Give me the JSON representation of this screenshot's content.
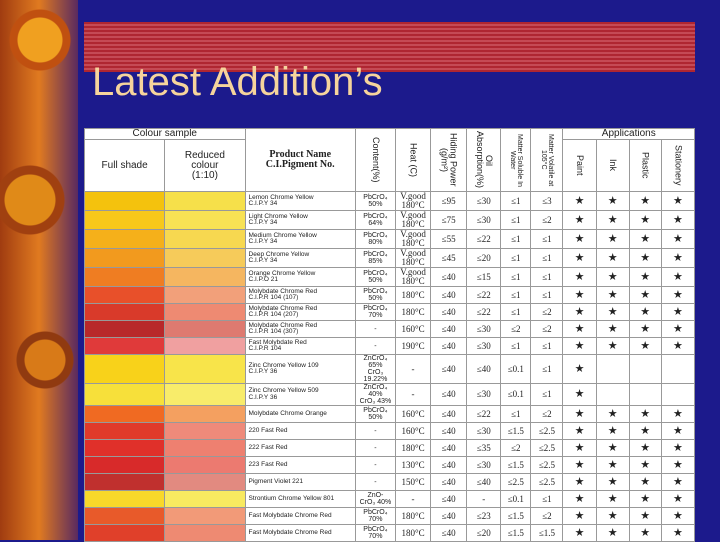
{
  "title": "Latest Addition’s",
  "table": {
    "header": {
      "colour_sample": "Colour sample",
      "full_shade": "Full shade",
      "reduced": [
        "Reduced",
        "colour",
        "(1:10)"
      ],
      "product": [
        "Product Name",
        "C.I.Pigment No."
      ],
      "columns": [
        "Content(%)",
        "Heat (C)",
        "Hiding Power (g/m²)",
        "Oil Absorption(%)",
        "Matter Soluble In Water",
        "Matter Volatile at 105°C"
      ],
      "applications": "Applications",
      "apps": [
        "Paint",
        "Ink",
        "Plastic",
        "Stationery"
      ]
    },
    "rows": [
      {
        "full": "#f4c20d",
        "reduced": "#f6e04a",
        "name": [
          "Lemon Chrome Yellow",
          "C.I.P.Y 34"
        ],
        "content": [
          "PbCrO₄ 50%"
        ],
        "heat": [
          "V.good",
          "180°C"
        ],
        "hiding": "≤95",
        "oil": "≤30",
        "soluble": "≤1",
        "volatile": "≤3",
        "apps": [
          "★",
          "★",
          "★",
          "★"
        ]
      },
      {
        "full": "#f7c81a",
        "reduced": "#f8e254",
        "name": [
          "Light Chrome Yellow",
          "C.I.P.Y 34"
        ],
        "content": [
          "PbCrO₄ 64%"
        ],
        "heat": [
          "V.good",
          "180°C"
        ],
        "hiding": "≤75",
        "oil": "≤30",
        "soluble": "≤1",
        "volatile": "≤2",
        "apps": [
          "★",
          "★",
          "★",
          "★"
        ]
      },
      {
        "full": "#f5b01a",
        "reduced": "#f7d850",
        "name": [
          "Medium Chrome Yellow",
          "C.I.P.Y 34"
        ],
        "content": [
          "PbCrO₄ 80%"
        ],
        "heat": [
          "V.good",
          "180°C"
        ],
        "hiding": "≤55",
        "oil": "≤22",
        "soluble": "≤1",
        "volatile": "≤1",
        "apps": [
          "★",
          "★",
          "★",
          "★"
        ]
      },
      {
        "full": "#f29a1e",
        "reduced": "#f6cb5a",
        "name": [
          "Deep Chrome Yellow",
          "C.I.P.Y 34"
        ],
        "content": [
          "PbCrO₄ 85%"
        ],
        "heat": [
          "V.good",
          "180°C"
        ],
        "hiding": "≤45",
        "oil": "≤20",
        "soluble": "≤1",
        "volatile": "≤1",
        "apps": [
          "★",
          "★",
          "★",
          "★"
        ]
      },
      {
        "full": "#ef7d22",
        "reduced": "#f5b660",
        "name": [
          "Orange Chrome Yellow",
          "C.I.P.O 21"
        ],
        "content": [
          "PbCrO₄ 50%"
        ],
        "heat": [
          "V.good",
          "180°C"
        ],
        "hiding": "≤40",
        "oil": "≤15",
        "soluble": "≤1",
        "volatile": "≤1",
        "apps": [
          "★",
          "★",
          "★",
          "★"
        ]
      },
      {
        "full": "#e8502a",
        "reduced": "#f2a07a",
        "name": [
          "Molybdate Chrome Red",
          "C.I.P.R 104 (107)"
        ],
        "content": [
          "PbCrO₄ 50%"
        ],
        "heat": [
          "180°C"
        ],
        "hiding": "≤40",
        "oil": "≤22",
        "soluble": "≤1",
        "volatile": "≤1",
        "apps": [
          "★",
          "★",
          "★",
          "★"
        ]
      },
      {
        "full": "#d93a2a",
        "reduced": "#ee8a72",
        "name": [
          "Molybdate Chrome Red",
          "C.I.P.R 104 (207)"
        ],
        "content": [
          "PbCrO₄ 70%"
        ],
        "heat": [
          "180°C"
        ],
        "hiding": "≤40",
        "oil": "≤22",
        "soluble": "≤1",
        "volatile": "≤2",
        "apps": [
          "★",
          "★",
          "★",
          "★"
        ]
      },
      {
        "full": "#b8282a",
        "reduced": "#de7a70",
        "name": [
          "Molybdate Chrome Red",
          "C.I.P.R 104 (307)"
        ],
        "content": [
          "-"
        ],
        "heat": [
          "160°C"
        ],
        "hiding": "≤40",
        "oil": "≤30",
        "soluble": "≤2",
        "volatile": "≤2",
        "apps": [
          "★",
          "★",
          "★",
          "★"
        ]
      },
      {
        "full": "#e03a3a",
        "reduced": "#f0a0a0",
        "name": [
          "Fast Molybdate Red",
          "C.I.P.R 104"
        ],
        "content": [
          "-"
        ],
        "heat": [
          "190°C"
        ],
        "hiding": "≤40",
        "oil": "≤30",
        "soluble": "≤1",
        "volatile": "≤1",
        "apps": [
          "★",
          "★",
          "★",
          "★"
        ]
      },
      {
        "full": "#f8d21a",
        "reduced": "#f8e44a",
        "name": [
          "Zinc Chrome Yellow 109",
          "C.I.P.Y 36"
        ],
        "content": [
          "ZnCrO₄ 65%",
          "CrO₃ 19.22%"
        ],
        "heat": [
          "-"
        ],
        "hiding": "≤40",
        "oil": "≤40",
        "soluble": "≤0.1",
        "volatile": "≤1",
        "apps": [
          "★"
        ]
      },
      {
        "full": "#f7e03a",
        "reduced": "#f8ec6a",
        "name": [
          "Zinc Chrome Yellow 509",
          "C.I.P.Y 36"
        ],
        "content": [
          "ZnCrO₄ 40%",
          "CrO₃ 43%"
        ],
        "heat": [
          "-"
        ],
        "hiding": "≤40",
        "oil": "≤30",
        "soluble": "≤0.1",
        "volatile": "≤1",
        "apps": [
          "★"
        ]
      },
      {
        "full": "#f06a22",
        "reduced": "#f4a060",
        "name": [
          "Molybdate Chrome Orange"
        ],
        "content": [
          "PbCrO₄ 50%"
        ],
        "heat": [
          "160°C"
        ],
        "hiding": "≤40",
        "oil": "≤22",
        "soluble": "≤1",
        "volatile": "≤2",
        "apps": [
          "★",
          "★",
          "★",
          "★"
        ]
      },
      {
        "full": "#e03a2a",
        "reduced": "#ef8a7a",
        "name": [
          "220 Fast Red"
        ],
        "content": [
          "-"
        ],
        "heat": [
          "160°C"
        ],
        "hiding": "≤40",
        "oil": "≤30",
        "soluble": "≤1.5",
        "volatile": "≤2.5",
        "apps": [
          "★",
          "★",
          "★",
          "★"
        ]
      },
      {
        "full": "#e0302a",
        "reduced": "#ee8070",
        "name": [
          "222 Fast Red"
        ],
        "content": [
          "-"
        ],
        "heat": [
          "180°C"
        ],
        "hiding": "≤40",
        "oil": "≤35",
        "soluble": "≤2",
        "volatile": "≤2.5",
        "apps": [
          "★",
          "★",
          "★",
          "★"
        ]
      },
      {
        "full": "#d82a2a",
        "reduced": "#ec7a70",
        "name": [
          "223 Fast Red"
        ],
        "content": [
          "-"
        ],
        "heat": [
          "130°C"
        ],
        "hiding": "≤40",
        "oil": "≤30",
        "soluble": "≤1.5",
        "volatile": "≤2.5",
        "apps": [
          "★",
          "★",
          "★",
          "★"
        ]
      },
      {
        "full": "#c0302e",
        "reduced": "#e28a80",
        "name": [
          "Pigment Violet 221"
        ],
        "content": [
          "-"
        ],
        "heat": [
          "150°C"
        ],
        "hiding": "≤40",
        "oil": "≤40",
        "soluble": "≤2.5",
        "volatile": "≤2.5",
        "apps": [
          "★",
          "★",
          "★",
          "★"
        ]
      },
      {
        "full": "#f8d82a",
        "reduced": "#f8ea60",
        "name": [
          "Strontium Chrome Yellow 801"
        ],
        "content": [
          "ZnO-",
          "CrO₃ 40%"
        ],
        "heat": [
          "-"
        ],
        "hiding": "≤40",
        "oil": "-",
        "soluble": "≤0.1",
        "volatile": "≤1",
        "apps": [
          "★",
          "★",
          "★",
          "★"
        ]
      },
      {
        "full": "#e85a2a",
        "reduced": "#f29a78",
        "name": [
          "Fast Molybdate Chrome Red"
        ],
        "content": [
          "PbCrO₄ 70%"
        ],
        "heat": [
          "180°C"
        ],
        "hiding": "≤40",
        "oil": "≤23",
        "soluble": "≤1.5",
        "volatile": "≤2",
        "apps": [
          "★",
          "★",
          "★",
          "★"
        ]
      },
      {
        "full": "#e0402a",
        "reduced": "#ee8a72",
        "name": [
          "Fast Molybdate Chrome Red"
        ],
        "content": [
          "PbCrO₄ 70%"
        ],
        "heat": [
          "180°C"
        ],
        "hiding": "≤40",
        "oil": "≤20",
        "soluble": "≤1.5",
        "volatile": "≤1.5",
        "apps": [
          "★",
          "★",
          "★",
          "★"
        ]
      }
    ]
  }
}
